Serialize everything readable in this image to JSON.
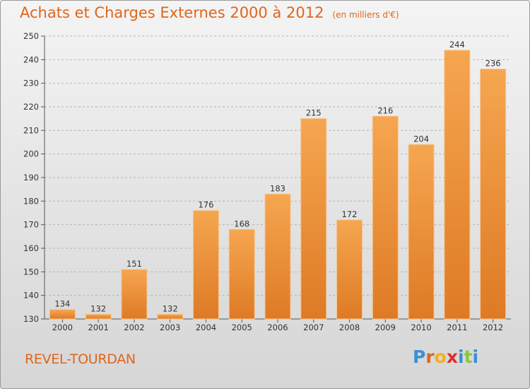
{
  "title": "Achats et Charges Externes 2000 à 2012",
  "subtitle": "(en milliers d'€)",
  "location": "REVEL-TOURDAN",
  "logo": {
    "text": "Proxiti",
    "letters": [
      {
        "ch": "P",
        "color": "#3a8fd6"
      },
      {
        "ch": "r",
        "color": "#e0661a"
      },
      {
        "ch": "o",
        "color": "#f2b01e"
      },
      {
        "ch": "x",
        "color": "#d9322a"
      },
      {
        "ch": "i",
        "color": "#3a8fd6"
      },
      {
        "ch": "t",
        "color": "#8cc63f"
      },
      {
        "ch": "i",
        "color": "#3a8fd6"
      }
    ]
  },
  "colors": {
    "bar_light": "#f6a650",
    "bar_dark": "#de7a25",
    "accent": "#e0661a"
  },
  "chart_data": {
    "type": "bar",
    "categories": [
      "2000",
      "2001",
      "2002",
      "2003",
      "2004",
      "2005",
      "2006",
      "2007",
      "2008",
      "2009",
      "2010",
      "2011",
      "2012"
    ],
    "values": [
      134,
      132,
      151,
      132,
      176,
      168,
      183,
      215,
      172,
      216,
      204,
      244,
      236
    ],
    "title": "Achats et Charges Externes 2000 à 2012",
    "xlabel": "",
    "ylabel": "",
    "ylim": [
      130,
      250
    ],
    "yticks": [
      130,
      140,
      150,
      160,
      170,
      180,
      190,
      200,
      210,
      220,
      230,
      240,
      250
    ],
    "grid": "horizontal dashed",
    "legend": "none"
  }
}
